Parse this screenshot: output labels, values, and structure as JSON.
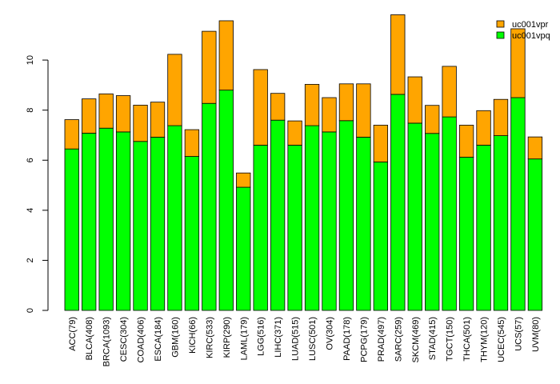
{
  "chart_data": {
    "type": "bar",
    "stacked": true,
    "categories": [
      "ACC(79)",
      "BLCA(408)",
      "BRCA(1093)",
      "CESC(304)",
      "COAD(406)",
      "ESCA(184)",
      "GBM(160)",
      "KICH(66)",
      "KIRC(533)",
      "KIRP(290)",
      "LAML(179)",
      "LGG(516)",
      "LIHC(371)",
      "LUAD(515)",
      "LUSC(501)",
      "OV(304)",
      "PAAD(178)",
      "PCPG(179)",
      "PRAD(497)",
      "SARC(259)",
      "SKCM(469)",
      "STAD(415)",
      "TGCT(150)",
      "THCA(501)",
      "THYM(120)",
      "UCEC(545)",
      "UCS(57)",
      "UVM(80)"
    ],
    "series": [
      {
        "name": "uc001vpq",
        "color": "#00ff00",
        "values": [
          6.45,
          7.08,
          7.28,
          7.13,
          6.75,
          6.92,
          7.38,
          6.15,
          8.27,
          8.8,
          4.92,
          6.6,
          7.6,
          6.6,
          7.38,
          7.13,
          7.58,
          6.92,
          5.93,
          8.63,
          7.48,
          7.07,
          7.73,
          6.12,
          6.6,
          6.98,
          8.5,
          6.05
        ]
      },
      {
        "name": "uc001vpr",
        "color": "#ffa500",
        "values": [
          1.17,
          1.37,
          1.37,
          1.45,
          1.45,
          1.4,
          2.85,
          1.07,
          2.88,
          2.77,
          0.57,
          3.02,
          1.07,
          0.97,
          1.65,
          1.37,
          1.47,
          2.13,
          1.47,
          3.18,
          1.85,
          1.12,
          2.02,
          1.28,
          1.38,
          1.45,
          2.75,
          0.88
        ]
      }
    ],
    "title": "",
    "xlabel": "",
    "ylabel": "",
    "ylim": [
      0,
      12
    ],
    "yticks": [
      0,
      2,
      4,
      6,
      8,
      10
    ],
    "legend_position": "top-right"
  }
}
